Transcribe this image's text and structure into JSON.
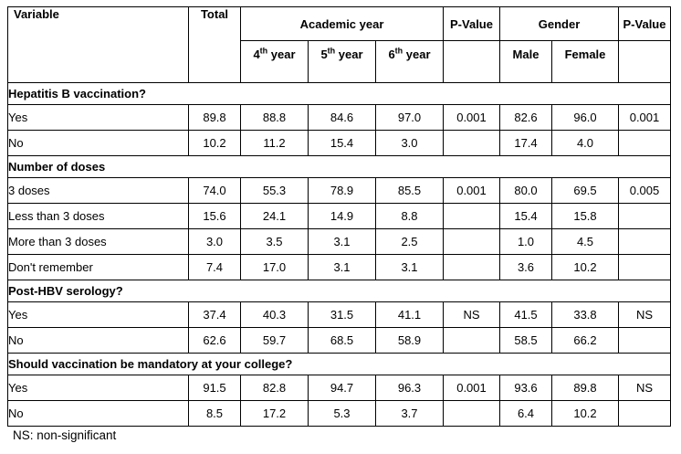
{
  "colors": {
    "background": "#ffffff",
    "border": "#000000",
    "text": "#000000"
  },
  "table": {
    "header": {
      "col_variable": "Variable",
      "col_total": "Total",
      "group_academic_year": "Academic year",
      "col_p_value_academic": "P-Value",
      "group_gender": "Gender",
      "col_male": "Male",
      "col_female": "Female",
      "col_p_value_gender": "P-Value",
      "years": [
        {
          "base": "4",
          "sup": "th",
          "rest": " year"
        },
        {
          "base": "5",
          "sup": "th",
          "rest": " year"
        },
        {
          "base": "6",
          "sup": "th",
          "rest": " year"
        }
      ]
    },
    "sections": [
      {
        "title": "Hepatitis B vaccination?",
        "rows": [
          {
            "label": "Yes",
            "values": [
              "89.8",
              "88.8",
              "84.6",
              "97.0",
              "0.001",
              "82.6",
              "96.0",
              "0.001"
            ]
          },
          {
            "label": "No",
            "values": [
              "10.2",
              "11.2",
              "15.4",
              "3.0",
              "",
              "17.4",
              "4.0",
              ""
            ]
          }
        ]
      },
      {
        "title": "Number of doses",
        "rows": [
          {
            "label": "3 doses",
            "values": [
              "74.0",
              "55.3",
              "78.9",
              "85.5",
              "0.001",
              "80.0",
              "69.5",
              "0.005"
            ]
          },
          {
            "label": "Less than 3 doses",
            "values": [
              "15.6",
              "24.1",
              "14.9",
              "8.8",
              "",
              "15.4",
              "15.8",
              ""
            ]
          },
          {
            "label": "More than 3 doses",
            "values": [
              "3.0",
              "3.5",
              "3.1",
              "2.5",
              "",
              "1.0",
              "4.5",
              ""
            ]
          },
          {
            "label": "Don't remember",
            "values": [
              "7.4",
              "17.0",
              "3.1",
              "3.1",
              "",
              "3.6",
              "10.2",
              ""
            ]
          }
        ]
      },
      {
        "title": "Post-HBV serology?",
        "rows": [
          {
            "label": "Yes",
            "values": [
              "37.4",
              "40.3",
              "31.5",
              "41.1",
              "NS",
              "41.5",
              "33.8",
              "NS"
            ]
          },
          {
            "label": "No",
            "values": [
              "62.6",
              "59.7",
              "68.5",
              "58.9",
              "",
              "58.5",
              "66.2",
              ""
            ]
          }
        ]
      },
      {
        "title": "Should vaccination be mandatory at your college?",
        "rows": [
          {
            "label": "Yes",
            "values": [
              "91.5",
              "82.8",
              "94.7",
              "96.3",
              "0.001",
              "93.6",
              "89.8",
              "NS"
            ]
          },
          {
            "label": "No",
            "values": [
              "8.5",
              "17.2",
              "5.3",
              "3.7",
              "",
              "6.4",
              "10.2",
              ""
            ]
          }
        ]
      }
    ],
    "footnote": "NS: non-significant"
  }
}
